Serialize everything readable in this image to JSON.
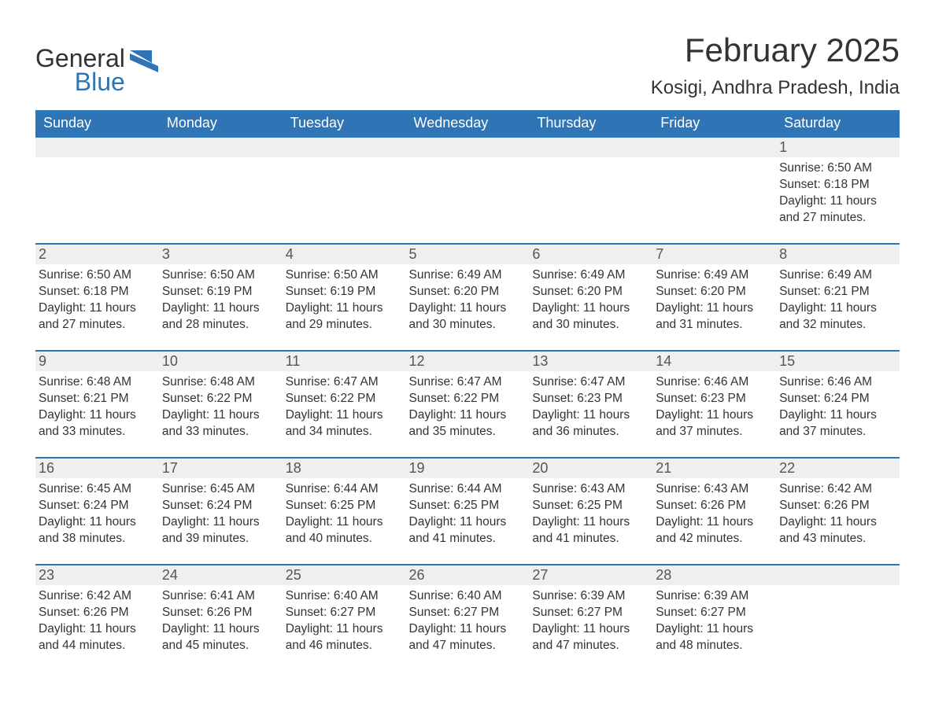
{
  "logo": {
    "word1": "General",
    "word2": "Blue",
    "brand_color": "#2f74b5"
  },
  "title": "February 2025",
  "location": "Kosigi, Andhra Pradesh, India",
  "weekdays": [
    "Sunday",
    "Monday",
    "Tuesday",
    "Wednesday",
    "Thursday",
    "Friday",
    "Saturday"
  ],
  "colors": {
    "header_bg": "#2f74b5",
    "header_text": "#ffffff",
    "daynum_bg": "#efefef",
    "row_border": "#2f74b5",
    "text": "#333333",
    "background": "#ffffff"
  },
  "typography": {
    "title_fontsize": 42,
    "location_fontsize": 24,
    "weekday_fontsize": 18,
    "daynum_fontsize": 18,
    "body_fontsize": 15.5
  },
  "labels": {
    "sunrise": "Sunrise:",
    "sunset": "Sunset:",
    "daylight": "Daylight:"
  },
  "weeks": [
    [
      null,
      null,
      null,
      null,
      null,
      null,
      {
        "day": "1",
        "sunrise": "6:50 AM",
        "sunset": "6:18 PM",
        "daylight": "11 hours and 27 minutes."
      }
    ],
    [
      {
        "day": "2",
        "sunrise": "6:50 AM",
        "sunset": "6:18 PM",
        "daylight": "11 hours and 27 minutes."
      },
      {
        "day": "3",
        "sunrise": "6:50 AM",
        "sunset": "6:19 PM",
        "daylight": "11 hours and 28 minutes."
      },
      {
        "day": "4",
        "sunrise": "6:50 AM",
        "sunset": "6:19 PM",
        "daylight": "11 hours and 29 minutes."
      },
      {
        "day": "5",
        "sunrise": "6:49 AM",
        "sunset": "6:20 PM",
        "daylight": "11 hours and 30 minutes."
      },
      {
        "day": "6",
        "sunrise": "6:49 AM",
        "sunset": "6:20 PM",
        "daylight": "11 hours and 30 minutes."
      },
      {
        "day": "7",
        "sunrise": "6:49 AM",
        "sunset": "6:20 PM",
        "daylight": "11 hours and 31 minutes."
      },
      {
        "day": "8",
        "sunrise": "6:49 AM",
        "sunset": "6:21 PM",
        "daylight": "11 hours and 32 minutes."
      }
    ],
    [
      {
        "day": "9",
        "sunrise": "6:48 AM",
        "sunset": "6:21 PM",
        "daylight": "11 hours and 33 minutes."
      },
      {
        "day": "10",
        "sunrise": "6:48 AM",
        "sunset": "6:22 PM",
        "daylight": "11 hours and 33 minutes."
      },
      {
        "day": "11",
        "sunrise": "6:47 AM",
        "sunset": "6:22 PM",
        "daylight": "11 hours and 34 minutes."
      },
      {
        "day": "12",
        "sunrise": "6:47 AM",
        "sunset": "6:22 PM",
        "daylight": "11 hours and 35 minutes."
      },
      {
        "day": "13",
        "sunrise": "6:47 AM",
        "sunset": "6:23 PM",
        "daylight": "11 hours and 36 minutes."
      },
      {
        "day": "14",
        "sunrise": "6:46 AM",
        "sunset": "6:23 PM",
        "daylight": "11 hours and 37 minutes."
      },
      {
        "day": "15",
        "sunrise": "6:46 AM",
        "sunset": "6:24 PM",
        "daylight": "11 hours and 37 minutes."
      }
    ],
    [
      {
        "day": "16",
        "sunrise": "6:45 AM",
        "sunset": "6:24 PM",
        "daylight": "11 hours and 38 minutes."
      },
      {
        "day": "17",
        "sunrise": "6:45 AM",
        "sunset": "6:24 PM",
        "daylight": "11 hours and 39 minutes."
      },
      {
        "day": "18",
        "sunrise": "6:44 AM",
        "sunset": "6:25 PM",
        "daylight": "11 hours and 40 minutes."
      },
      {
        "day": "19",
        "sunrise": "6:44 AM",
        "sunset": "6:25 PM",
        "daylight": "11 hours and 41 minutes."
      },
      {
        "day": "20",
        "sunrise": "6:43 AM",
        "sunset": "6:25 PM",
        "daylight": "11 hours and 41 minutes."
      },
      {
        "day": "21",
        "sunrise": "6:43 AM",
        "sunset": "6:26 PM",
        "daylight": "11 hours and 42 minutes."
      },
      {
        "day": "22",
        "sunrise": "6:42 AM",
        "sunset": "6:26 PM",
        "daylight": "11 hours and 43 minutes."
      }
    ],
    [
      {
        "day": "23",
        "sunrise": "6:42 AM",
        "sunset": "6:26 PM",
        "daylight": "11 hours and 44 minutes."
      },
      {
        "day": "24",
        "sunrise": "6:41 AM",
        "sunset": "6:26 PM",
        "daylight": "11 hours and 45 minutes."
      },
      {
        "day": "25",
        "sunrise": "6:40 AM",
        "sunset": "6:27 PM",
        "daylight": "11 hours and 46 minutes."
      },
      {
        "day": "26",
        "sunrise": "6:40 AM",
        "sunset": "6:27 PM",
        "daylight": "11 hours and 47 minutes."
      },
      {
        "day": "27",
        "sunrise": "6:39 AM",
        "sunset": "6:27 PM",
        "daylight": "11 hours and 47 minutes."
      },
      {
        "day": "28",
        "sunrise": "6:39 AM",
        "sunset": "6:27 PM",
        "daylight": "11 hours and 48 minutes."
      },
      null
    ]
  ]
}
